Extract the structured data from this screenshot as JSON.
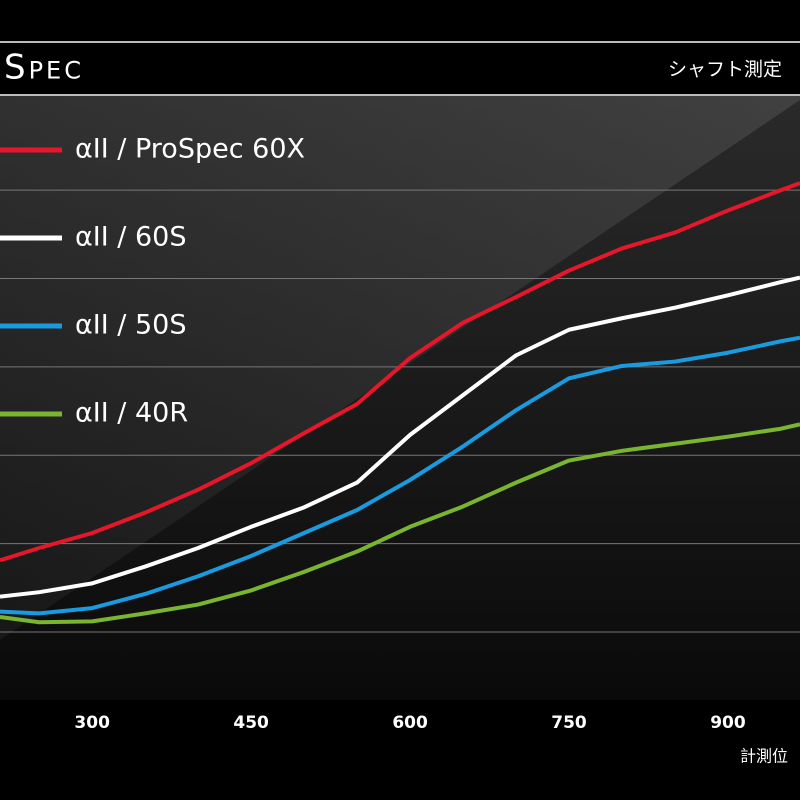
{
  "chart_data": {
    "type": "line",
    "title": "Spec",
    "subtitle": "シャフト測定",
    "x_label": "計測位",
    "x": [
      213,
      250,
      300,
      350,
      400,
      450,
      500,
      550,
      600,
      650,
      700,
      750,
      800,
      850,
      900,
      950,
      968
    ],
    "series": [
      {
        "name": "αII / ProSpec 60X",
        "color": "#e8162a",
        "values": [
          1.81,
          1.95,
          2.12,
          2.35,
          2.61,
          2.91,
          3.25,
          3.58,
          4.1,
          4.5,
          4.79,
          5.09,
          5.34,
          5.52,
          5.77,
          6.0,
          6.08
        ]
      },
      {
        "name": "αII / 60S",
        "color": "#ffffff",
        "values": [
          1.4,
          1.45,
          1.55,
          1.74,
          1.95,
          2.19,
          2.41,
          2.69,
          3.23,
          3.68,
          4.13,
          4.42,
          4.55,
          4.67,
          4.81,
          4.96,
          5.01
        ]
      },
      {
        "name": "αII / 50S",
        "color": "#1a9be0",
        "values": [
          1.23,
          1.21,
          1.27,
          1.43,
          1.63,
          1.86,
          2.12,
          2.38,
          2.72,
          3.1,
          3.51,
          3.87,
          4.01,
          4.06,
          4.16,
          4.29,
          4.33
        ]
      },
      {
        "name": "αII / 40R",
        "color": "#7ab52f",
        "values": [
          1.17,
          1.11,
          1.12,
          1.21,
          1.31,
          1.47,
          1.68,
          1.91,
          2.19,
          2.42,
          2.69,
          2.94,
          3.05,
          3.13,
          3.21,
          3.3,
          3.35
        ]
      }
    ],
    "xlim": [
      213,
      968
    ],
    "xticks": [
      300,
      450,
      600,
      750,
      900
    ],
    "ylim": [
      0.23,
      7.02
    ],
    "yticks": [
      1,
      2,
      3,
      4,
      5,
      6
    ],
    "grid": true
  }
}
